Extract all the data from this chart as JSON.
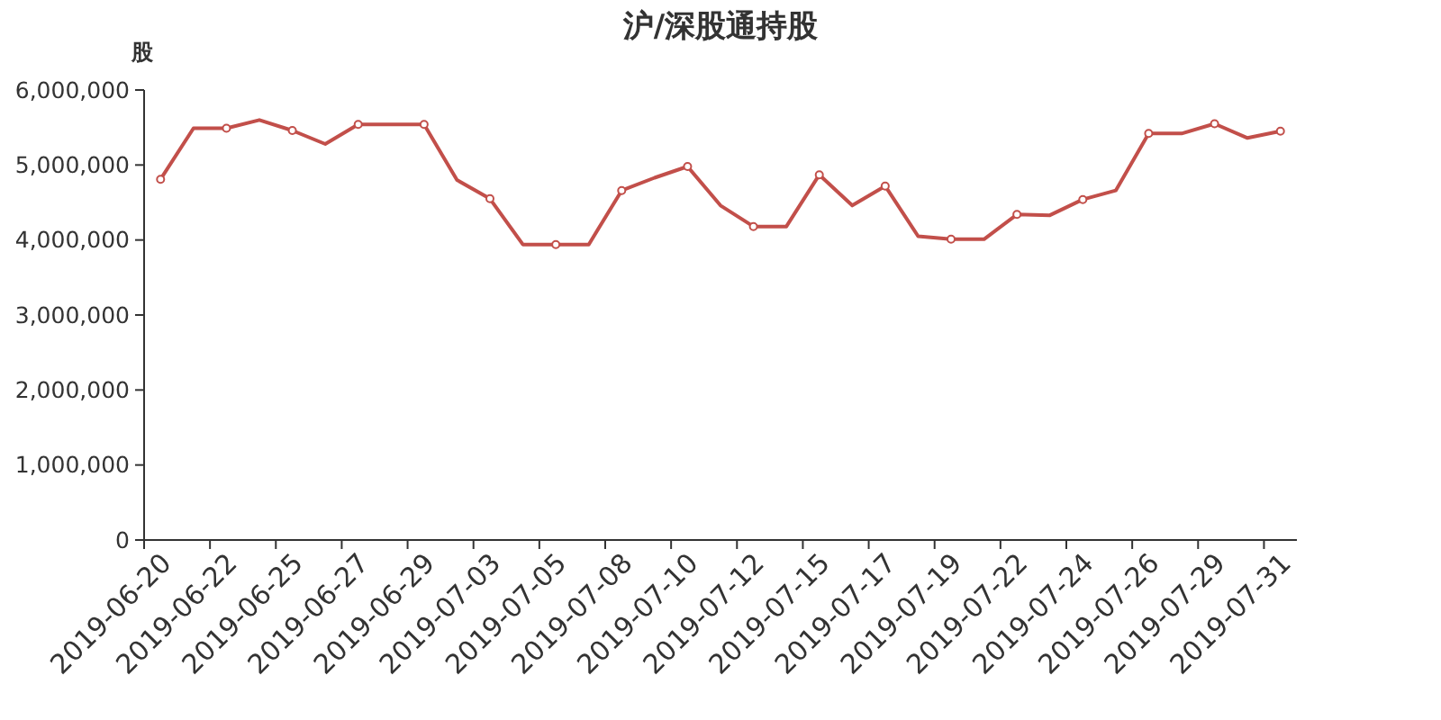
{
  "chart_data": {
    "type": "line",
    "title": "沪/深股通持股",
    "ylabel": "股",
    "categories": [
      "2019-06-20",
      null,
      "2019-06-22",
      null,
      "2019-06-25",
      null,
      "2019-06-27",
      null,
      "2019-06-29",
      null,
      "2019-07-03",
      null,
      "2019-07-05",
      null,
      "2019-07-08",
      null,
      "2019-07-10",
      null,
      "2019-07-12",
      null,
      "2019-07-15",
      null,
      "2019-07-17",
      null,
      "2019-07-19",
      null,
      "2019-07-22",
      null,
      "2019-07-24",
      null,
      "2019-07-26",
      null,
      "2019-07-29",
      null,
      "2019-07-31"
    ],
    "series": [
      {
        "color": "#c24f4a",
        "values": [
          4810000,
          5490000,
          5490000,
          5600000,
          5460000,
          5280000,
          5540000,
          5540000,
          5540000,
          4800000,
          4550000,
          3940000,
          3940000,
          3940000,
          4660000,
          4830000,
          4980000,
          4460000,
          4180000,
          4180000,
          4870000,
          4460000,
          4720000,
          4050000,
          4010000,
          4010000,
          4340000,
          4330000,
          4540000,
          4660000,
          5420000,
          5420000,
          5550000,
          5360000,
          5450000
        ]
      }
    ],
    "ylim": [
      0,
      6000000
    ],
    "yticks": [
      0,
      {
        "value": 1000000,
        "label": "1,000,000"
      },
      {
        "value": 2000000,
        "label": "2,000,000"
      },
      {
        "value": 3000000,
        "label": "3,000,000"
      },
      {
        "value": 4000000,
        "label": "4,000,000"
      },
      {
        "value": 5000000,
        "label": "5,000,000"
      },
      {
        "value": 6000000,
        "label": "6,000,000"
      }
    ],
    "marker": "circle",
    "line_style": "solid"
  }
}
